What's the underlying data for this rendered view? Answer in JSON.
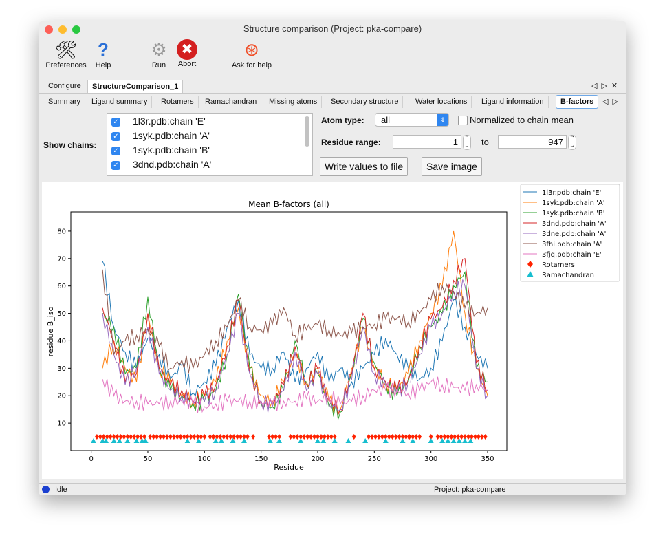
{
  "window": {
    "title": "Structure comparison (Project: pka-compare)"
  },
  "toolbar": [
    {
      "label": "Preferences",
      "icon": "preferences-icon"
    },
    {
      "label": "Help",
      "icon": "help-icon"
    },
    {
      "label": "Run",
      "icon": "gear-icon"
    },
    {
      "label": "Abort",
      "icon": "abort-icon"
    },
    {
      "label": "Ask for help",
      "icon": "lifebuoy-icon"
    }
  ],
  "tabs": [
    {
      "label": "Configure"
    },
    {
      "label": "StructureComparison_1",
      "selected": true
    }
  ],
  "subtabs": [
    {
      "label": "Summary"
    },
    {
      "label": "Ligand summary"
    },
    {
      "label": "Rotamers"
    },
    {
      "label": "Ramachandran"
    },
    {
      "label": "Missing atoms"
    },
    {
      "label": "Secondary structure"
    },
    {
      "label": "Water locations"
    },
    {
      "label": "Ligand information"
    },
    {
      "label": "B-factors",
      "selected": true
    }
  ],
  "controls": {
    "show_chains_label": "Show chains:",
    "chains": [
      {
        "label": "1l3r.pdb:chain 'E'",
        "checked": true
      },
      {
        "label": "1syk.pdb:chain 'A'",
        "checked": true
      },
      {
        "label": "1syk.pdb:chain 'B'",
        "checked": true
      },
      {
        "label": "3dnd.pdb:chain 'A'",
        "checked": true
      }
    ],
    "atom_type_label": "Atom type:",
    "atom_type": "all",
    "normalized_label": "Normalized to chain mean",
    "normalized": false,
    "residue_range_label": "Residue range:",
    "range_from": "1",
    "to_label": "to",
    "range_to": "947",
    "write_button": "Write values to file",
    "save_button": "Save image"
  },
  "status": {
    "text": "Idle",
    "project": "Project: pka-compare",
    "indicator_color": "#1a3fd0"
  },
  "chart_data": {
    "type": "line",
    "title": "Mean B-factors (all)",
    "xlabel": "Residue",
    "ylabel": "residue B_iso",
    "xlim": [
      -18,
      367
    ],
    "ylim": [
      0,
      87
    ],
    "xticks": [
      0,
      50,
      100,
      150,
      200,
      250,
      300,
      350
    ],
    "yticks": [
      10,
      20,
      30,
      40,
      50,
      60,
      70,
      80
    ],
    "legend": "outside-right",
    "x": [
      10,
      20,
      30,
      40,
      50,
      60,
      70,
      80,
      90,
      100,
      110,
      120,
      130,
      140,
      150,
      160,
      170,
      180,
      190,
      200,
      210,
      220,
      230,
      240,
      250,
      260,
      270,
      280,
      290,
      300,
      310,
      320,
      330,
      340,
      350
    ],
    "series": [
      {
        "name": "1l3r.pdb:chain 'E'",
        "color": "#1f77b4",
        "values": [
          69,
          45,
          36,
          30,
          41,
          35,
          26,
          31,
          21,
          25,
          31,
          45,
          55,
          35,
          30,
          30,
          36,
          25,
          30,
          36,
          25,
          30,
          25,
          30,
          35,
          41,
          35,
          30,
          26,
          30,
          40,
          55,
          45,
          35,
          30
        ]
      },
      {
        "name": "1syk.pdb:chain 'A'",
        "color": "#ff7f0e",
        "values": [
          30,
          40,
          30,
          25,
          50,
          30,
          25,
          20,
          18,
          20,
          25,
          40,
          52,
          30,
          20,
          18,
          25,
          35,
          25,
          30,
          18,
          15,
          30,
          45,
          30,
          25,
          22,
          28,
          40,
          50,
          60,
          80,
          50,
          30,
          20
        ]
      },
      {
        "name": "1syk.pdb:chain 'B'",
        "color": "#2ca02c",
        "values": [
          50,
          45,
          28,
          30,
          56,
          30,
          22,
          20,
          17,
          18,
          22,
          35,
          57,
          30,
          17,
          16,
          22,
          40,
          25,
          28,
          16,
          14,
          28,
          48,
          32,
          24,
          20,
          25,
          38,
          45,
          50,
          60,
          65,
          30,
          25
        ]
      },
      {
        "name": "3dnd.pdb:chain 'A'",
        "color": "#d62728",
        "values": [
          52,
          40,
          25,
          28,
          50,
          30,
          24,
          22,
          18,
          20,
          24,
          38,
          55,
          28,
          18,
          17,
          24,
          38,
          24,
          30,
          18,
          15,
          28,
          50,
          30,
          25,
          22,
          26,
          38,
          48,
          52,
          62,
          70,
          32,
          22
        ]
      },
      {
        "name": "3dne.pdb:chain 'A'",
        "color": "#9467bd",
        "values": [
          50,
          35,
          24,
          30,
          45,
          28,
          22,
          20,
          17,
          18,
          22,
          35,
          50,
          28,
          18,
          16,
          22,
          36,
          22,
          28,
          17,
          15,
          26,
          45,
          28,
          24,
          21,
          25,
          35,
          45,
          50,
          58,
          60,
          30,
          20
        ]
      },
      {
        "name": "3fhi.pdb:chain 'A'",
        "color": "#8c564b",
        "values": [
          66,
          35,
          40,
          42,
          44,
          38,
          30,
          33,
          30,
          35,
          40,
          45,
          55,
          45,
          44,
          46,
          52,
          42,
          44,
          46,
          44,
          42,
          43,
          45,
          46,
          48,
          48,
          47,
          50,
          55,
          60,
          58,
          52,
          50,
          52
        ]
      },
      {
        "name": "3fjq.pdb:chain 'E'",
        "color": "#e377c2",
        "values": [
          26,
          20,
          18,
          18,
          17,
          17,
          18,
          18,
          17,
          16,
          17,
          18,
          18,
          18,
          17,
          17,
          18,
          18,
          19,
          18,
          20,
          17,
          18,
          20,
          22,
          22,
          22,
          21,
          22,
          25,
          24,
          23,
          22,
          24,
          22
        ]
      }
    ],
    "markers": [
      {
        "name": "Rotamers",
        "color": "#ff2200",
        "shape": "diamond",
        "y": 5,
        "x": [
          5,
          8,
          11,
          14,
          17,
          20,
          23,
          26,
          29,
          32,
          35,
          38,
          41,
          44,
          47,
          52,
          55,
          58,
          61,
          64,
          67,
          70,
          73,
          76,
          79,
          82,
          85,
          88,
          91,
          94,
          97,
          100,
          105,
          108,
          111,
          114,
          117,
          120,
          123,
          126,
          129,
          132,
          135,
          138,
          143,
          157,
          160,
          163,
          166,
          176,
          179,
          182,
          185,
          188,
          191,
          194,
          197,
          200,
          203,
          206,
          209,
          212,
          215,
          232,
          245,
          248,
          251,
          254,
          257,
          260,
          263,
          266,
          269,
          272,
          275,
          278,
          281,
          284,
          287,
          290,
          300,
          306,
          309,
          312,
          315,
          318,
          321,
          324,
          327,
          330,
          333,
          336,
          339,
          342,
          345,
          348
        ]
      },
      {
        "name": "Ramachandran",
        "color": "#17becf",
        "shape": "triangle",
        "y": 3.5,
        "x": [
          2,
          10,
          13,
          20,
          25,
          32,
          40,
          45,
          48,
          85,
          95,
          110,
          115,
          125,
          135,
          158,
          166,
          185,
          200,
          205,
          215,
          227,
          242,
          260,
          275,
          284,
          300,
          310,
          315,
          320,
          325,
          330,
          335
        ]
      }
    ]
  }
}
